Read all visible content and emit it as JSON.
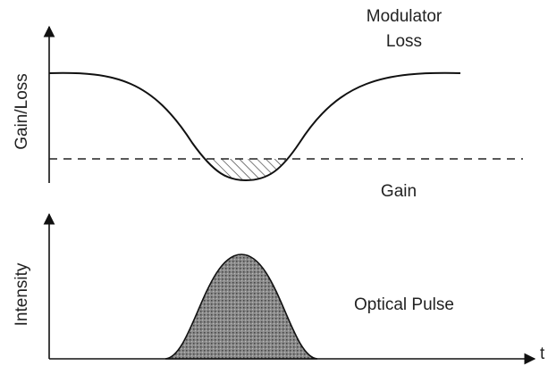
{
  "top_panel": {
    "label_line1": "Modulator",
    "label_line2": "Loss",
    "y_axis_label": "Gain/Loss",
    "gain_label": "Gain"
  },
  "bottom_panel": {
    "y_axis_label": "Intensity",
    "pulse_label": "Optical Pulse",
    "x_axis_label": "t"
  }
}
